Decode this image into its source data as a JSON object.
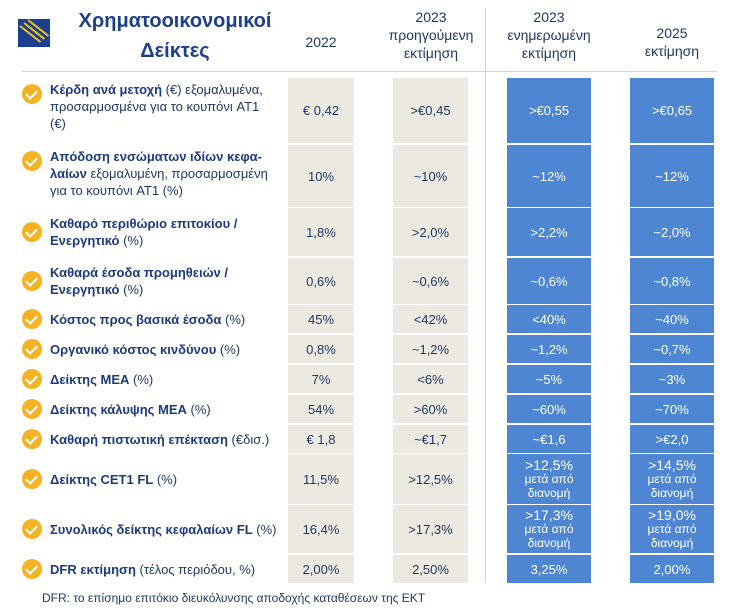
{
  "header": {
    "title_line1": "Χρηματοοικονομικοί",
    "title_line2": "Δείκτες",
    "columns": [
      {
        "line1": "2022",
        "line2": "",
        "line3": ""
      },
      {
        "line1": "2023",
        "line2": "προηγούμενη",
        "line3": "εκτίμηση"
      },
      {
        "line1": "2023",
        "line2": "ενημερωμένη",
        "line3": "εκτίμηση"
      },
      {
        "line1": "2025",
        "line2": "εκτίμηση",
        "line3": ""
      }
    ]
  },
  "colors": {
    "title": "#1c3f8f",
    "text": "#1f3864",
    "gold_line": "#f2d776",
    "check_icon": "#f5b324",
    "gray_cell": "#ece9e0",
    "blue_cell": "#4e86d3"
  },
  "rows": [
    {
      "bold": "Κέρδη ανά μετοχή",
      "rest": " (€) εξομαλυμένα, προσαρμοσμένα για το κουπόνι AT1 (€)",
      "v2022": "€ 0,42",
      "v2023_prev": ">€0,45",
      "v2023_upd": ">€0,55",
      "v2025": ">€0,65"
    },
    {
      "bold": "Απόδοση ενσώματων ιδίων κεφα-λαίων",
      "rest": " εξομαλυμένη, προσαρμοσμένη για το κουπόνι AT1 (%)",
      "v2022": "10%",
      "v2023_prev": "~10%",
      "v2023_upd": "~12%",
      "v2025": "~12%"
    },
    {
      "bold": "Καθαρό περιθώριο επιτοκίου / Ενεργητικό",
      "rest": " (%)",
      "v2022": "1,8%",
      "v2023_prev": ">2,0%",
      "v2023_upd": ">2,2%",
      "v2025": "~2,0%"
    },
    {
      "bold": "Καθαρά έσοδα προμηθειών / Ενεργητικό",
      "rest": " (%)",
      "v2022": "0,6%",
      "v2023_prev": "~0,6%",
      "v2023_upd": "~0,6%",
      "v2025": "~0,8%"
    },
    {
      "bold": "Κόστος προς βασικά έσοδα",
      "rest": " (%)",
      "v2022": "45%",
      "v2023_prev": "<42%",
      "v2023_upd": "<40%",
      "v2025": "~40%"
    },
    {
      "bold": "Οργανικό κόστος κινδύνου",
      "rest": " (%)",
      "v2022": "0,8%",
      "v2023_prev": "~1,2%",
      "v2023_upd": "~1,2%",
      "v2025": "~0,7%"
    },
    {
      "bold": "Δείκτης ΜΕΑ",
      "rest": " (%)",
      "v2022": "7%",
      "v2023_prev": "<6%",
      "v2023_upd": "~5%",
      "v2025": "~3%"
    },
    {
      "bold": "Δείκτης κάλυψης ΜΕΑ",
      "rest": "  (%)",
      "v2022": "54%",
      "v2023_prev": ">60%",
      "v2023_upd": "~60%",
      "v2025": "~70%"
    },
    {
      "bold": "Καθαρή πιστωτική επέκταση",
      "rest": " (€δισ.)",
      "v2022": "€ 1,8",
      "v2023_prev": "~€1,7",
      "v2023_upd": "~€1,6",
      "v2025": ">€2,0"
    },
    {
      "bold": "Δείκτης CET1 FL",
      "rest": " (%)",
      "v2022": "11,5%",
      "v2023_prev": ">12,5%",
      "v2023_upd": ">12,5%",
      "v2023_upd_note1": "μετά από",
      "v2023_upd_note2": "διανομή",
      "v2025": ">14,5%",
      "v2025_note1": "μετά από",
      "v2025_note2": "διανομή"
    },
    {
      "bold": "Συνολικός δείκτης κεφαλαίων FL",
      "rest": " (%)",
      "v2022": "16,4%",
      "v2023_prev": ">17,3%",
      "v2023_upd": ">17,3%",
      "v2023_upd_note1": "μετά από",
      "v2023_upd_note2": "διανομή",
      "v2025": ">19,0%",
      "v2025_note1": "μετά από",
      "v2025_note2": "διανομή"
    },
    {
      "bold": "DFR εκτίμηση",
      "rest": " (τέλος περιόδου, %)",
      "v2022": "2,00%",
      "v2023_prev": "2,50%",
      "v2023_upd": "3,25%",
      "v2025": "2,00%"
    }
  ],
  "footnote": "DFR: το επίσημο επιτόκιο διευκόλυνσης αποδοχής καταθέσεων της ΕΚΤ"
}
